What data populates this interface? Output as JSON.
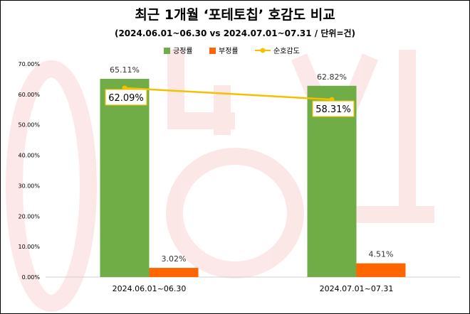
{
  "chart_data": {
    "type": "bar",
    "title": "최근 1개월 ‘포테토칩’ 호감도 비교",
    "subtitle": "(2024.06.01~06.30 vs 2024.07.01~07.31 / 단위=건)",
    "categories": [
      "2024.06.01~06.30",
      "2024.07.01~07.31"
    ],
    "series": [
      {
        "name": "긍정률",
        "type": "bar",
        "color": "#70ad47",
        "values": [
          65.11,
          62.82
        ],
        "labels": [
          "65.11%",
          "62.82%"
        ]
      },
      {
        "name": "부정률",
        "type": "bar",
        "color": "#ff6600",
        "values": [
          3.02,
          4.51
        ],
        "labels": [
          "3.02%",
          "4.51%"
        ]
      },
      {
        "name": "순호감도",
        "type": "line",
        "color": "#f5c000",
        "values": [
          62.09,
          58.31
        ],
        "labels": [
          "62.09%",
          "58.31%"
        ]
      }
    ],
    "y_ticks": [
      "0.00%",
      "10.00%",
      "20.00%",
      "30.00%",
      "40.00%",
      "50.00%",
      "60.00%",
      "70.00%"
    ],
    "ylim": [
      0,
      70
    ],
    "legend_position": "top",
    "grid": false,
    "watermark_text": "0|농심"
  }
}
